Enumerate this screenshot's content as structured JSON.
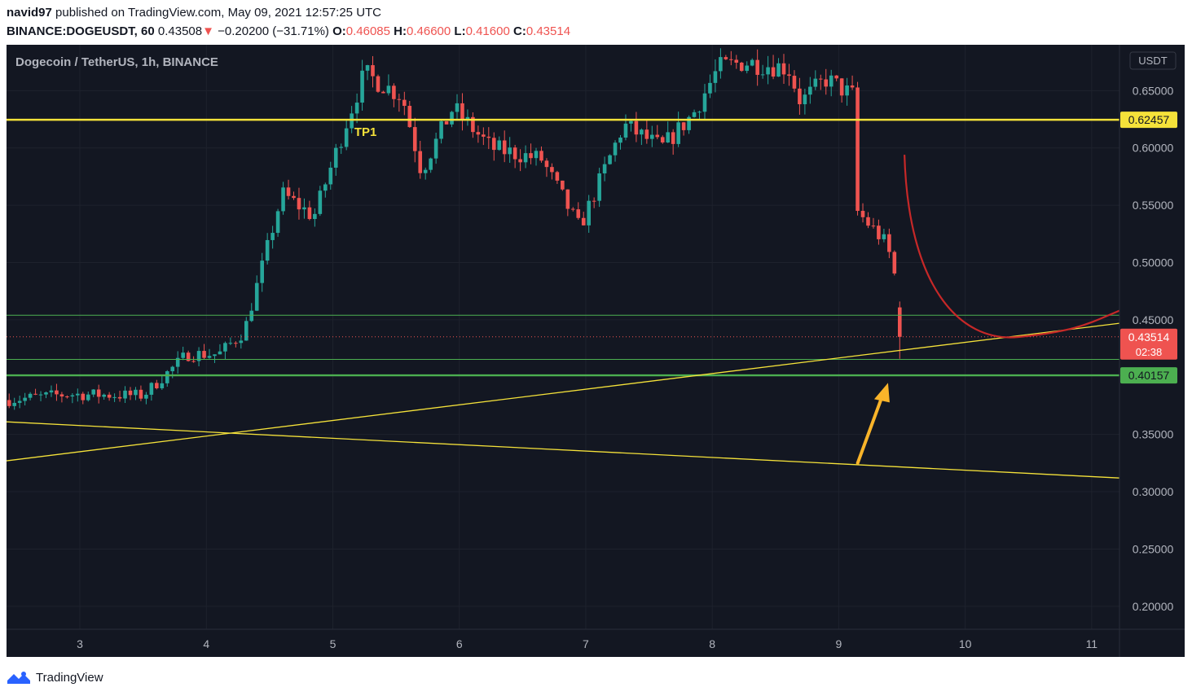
{
  "header": {
    "user": "navid97",
    "published_text": "published on TradingView.com, May 09, 2021 12:57:25 UTC",
    "symbol": "BINANCE:DOGEUSDT, 60",
    "last": "0.43508",
    "change": "−0.20200 (−31.71%)",
    "o_label": "O:",
    "o_value": "0.46085",
    "h_label": "H:",
    "h_value": "0.46600",
    "l_label": "L:",
    "l_value": "0.41600",
    "c_label": "C:",
    "c_value": "0.43514"
  },
  "chart_title": "Dogecoin / TetherUS, 1h, BINANCE",
  "currency": "USDT",
  "annotation_tp1": "TP1",
  "footer": {
    "brand": "TradingView"
  },
  "colors": {
    "background": "#131722",
    "up": "#26a69a",
    "down": "#ef5350",
    "yellow": "#f5e23a",
    "green_line": "#4caf50",
    "arrow": "#f9b42a",
    "curve": "#c62828"
  },
  "price_labels": [
    {
      "value": "0.62457",
      "price": 0.62457,
      "bg": "#f5e23a",
      "fg": "#131722"
    },
    {
      "value": "0.43514",
      "price": 0.43514,
      "bg": "#ef5350",
      "fg": "#ffffff",
      "sub": "02:38"
    },
    {
      "value": "0.40157",
      "price": 0.40157,
      "bg": "#4caf50",
      "fg": "#131722"
    }
  ],
  "chart_data": {
    "type": "candlestick",
    "x_ticks": [
      "3",
      "4",
      "5",
      "6",
      "7",
      "8",
      "9",
      "10",
      "11"
    ],
    "y_ticks": [
      "0.65000",
      "0.60000",
      "0.55000",
      "0.50000",
      "0.45000",
      "0.35000",
      "0.30000",
      "0.25000",
      "0.20000"
    ],
    "y_tick_values": [
      0.65,
      0.6,
      0.55,
      0.5,
      0.45,
      0.35,
      0.3,
      0.25,
      0.2
    ],
    "ylim": [
      0.18,
      0.69
    ],
    "xlim": [
      2.42,
      11.22
    ],
    "horizontal_lines": [
      {
        "price": 0.62457,
        "style": "thick",
        "color": "yellow"
      },
      {
        "price": 0.454,
        "style": "thin",
        "color": "green"
      },
      {
        "price": 0.4155,
        "style": "thin",
        "color": "green"
      },
      {
        "price": 0.40157,
        "style": "thick",
        "color": "green"
      },
      {
        "price": 0.43514,
        "style": "dotted",
        "color": "red"
      }
    ],
    "trend_lines": [
      {
        "x1": 2.42,
        "y1": 0.327,
        "x2": 11.22,
        "y2": 0.447
      },
      {
        "x1": 2.42,
        "y1": 0.361,
        "x2": 11.22,
        "y2": 0.312
      }
    ],
    "anchors": [
      {
        "x": 2.42,
        "p": 0.38
      },
      {
        "x": 2.9,
        "p": 0.385
      },
      {
        "x": 3.5,
        "p": 0.384
      },
      {
        "x": 3.85,
        "p": 0.42
      },
      {
        "x": 4.1,
        "p": 0.42
      },
      {
        "x": 4.3,
        "p": 0.44
      },
      {
        "x": 4.45,
        "p": 0.5
      },
      {
        "x": 4.6,
        "p": 0.56
      },
      {
        "x": 4.85,
        "p": 0.54
      },
      {
        "x": 5.1,
        "p": 0.62
      },
      {
        "x": 5.25,
        "p": 0.665
      },
      {
        "x": 5.55,
        "p": 0.645
      },
      {
        "x": 5.7,
        "p": 0.58
      },
      {
        "x": 5.95,
        "p": 0.635
      },
      {
        "x": 6.25,
        "p": 0.6
      },
      {
        "x": 6.65,
        "p": 0.59
      },
      {
        "x": 6.95,
        "p": 0.53
      },
      {
        "x": 7.3,
        "p": 0.62
      },
      {
        "x": 7.6,
        "p": 0.6
      },
      {
        "x": 7.85,
        "p": 0.63
      },
      {
        "x": 8.05,
        "p": 0.67
      },
      {
        "x": 8.25,
        "p": 0.675
      },
      {
        "x": 8.6,
        "p": 0.67
      },
      {
        "x": 8.7,
        "p": 0.64
      },
      {
        "x": 8.9,
        "p": 0.66
      },
      {
        "x": 9.12,
        "p": 0.645
      },
      {
        "x": 9.14,
        "p": 0.545
      },
      {
        "x": 9.35,
        "p": 0.52
      },
      {
        "x": 9.43,
        "p": 0.5
      },
      {
        "x": 9.47,
        "p": 0.46085
      },
      {
        "x": 9.5,
        "p": 0.43514
      }
    ]
  }
}
